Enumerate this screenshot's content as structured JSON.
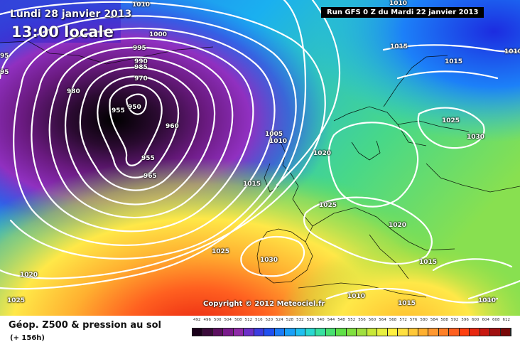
{
  "header": {
    "date": "Lundi 28 janvier 2013",
    "time": "13:00 locale",
    "run": "Run GFS 0 Z du Mardi 22 janvier 2013"
  },
  "map": {
    "copyright": "Copyright © 2012 Meteociel.fr",
    "isobar_labels": [
      "1010",
      "1000",
      "995",
      "990",
      "985",
      "980",
      "975",
      "970",
      "980",
      "955",
      "950",
      "960",
      "955",
      "965",
      "1005",
      "1010",
      "1015",
      "1020",
      "1025",
      "1030",
      "1020",
      "1025",
      "1015",
      "1010",
      "1015",
      "1020",
      "1025",
      "1030",
      "1015",
      "1010",
      "1010",
      "1015",
      "1025",
      "1020",
      "1010",
      "95",
      "95",
      "1020",
      "1015"
    ],
    "colors": {
      "low": "#000000",
      "mid": "#39c839",
      "high": "#ff2000"
    }
  },
  "legend": {
    "title": "Géop. Z500 & pression au sol",
    "subtitle": "(+ 156h)",
    "scale_values": [
      "492",
      "496",
      "500",
      "504",
      "508",
      "512",
      "516",
      "520",
      "524",
      "528",
      "532",
      "536",
      "540",
      "544",
      "548",
      "552",
      "556",
      "560",
      "564",
      "568",
      "572",
      "576",
      "580",
      "584",
      "588",
      "592",
      "596",
      "600",
      "604",
      "608",
      "612"
    ],
    "scale_colors": [
      "#1a001a",
      "#3a0a3a",
      "#5c1060",
      "#7a1a8c",
      "#8f2aa8",
      "#6c2fc8",
      "#3c3ce0",
      "#2050f0",
      "#1c7cf8",
      "#1aa0f8",
      "#20c0f0",
      "#2ad8d0",
      "#38e0a0",
      "#48e070",
      "#60e048",
      "#80e040",
      "#a0e040",
      "#c8e838",
      "#e8f040",
      "#fff040",
      "#ffe040",
      "#ffc838",
      "#ffb030",
      "#ff9830",
      "#ff8028",
      "#ff6020",
      "#ff4010",
      "#e82810",
      "#c81810",
      "#a01010",
      "#780808"
    ]
  }
}
